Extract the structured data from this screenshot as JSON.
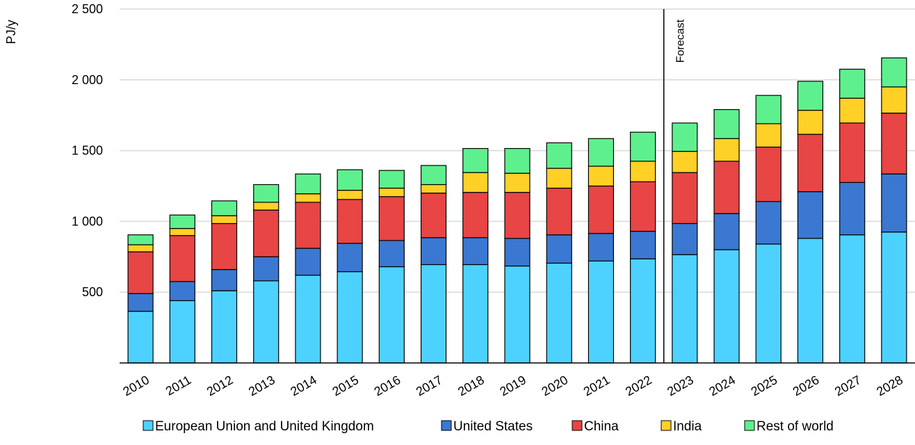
{
  "chart_data": {
    "type": "bar",
    "stacked": true,
    "ylabel": "PJ/y",
    "ylim": [
      0,
      2500
    ],
    "yticks": [
      500,
      1000,
      1500,
      2000,
      2500
    ],
    "ytick_labels": [
      "500",
      "1 000",
      "1 500",
      "2 000",
      "2 500"
    ],
    "grid": true,
    "legend_position": "bottom",
    "categories": [
      "2010",
      "2011",
      "2012",
      "2013",
      "2014",
      "2015",
      "2016",
      "2017",
      "2018",
      "2019",
      "2020",
      "2021",
      "2022",
      "2023",
      "2024",
      "2025",
      "2026",
      "2027",
      "2028"
    ],
    "annotation": {
      "label": "Forecast",
      "between": [
        "2022",
        "2023"
      ]
    },
    "series": [
      {
        "name": "European Union and United Kingdom",
        "color": "#4DD2FF",
        "values": [
          365,
          440,
          510,
          580,
          620,
          645,
          680,
          695,
          695,
          685,
          705,
          720,
          735,
          765,
          800,
          840,
          880,
          905,
          925
        ]
      },
      {
        "name": "United States",
        "color": "#3A78D2",
        "values": [
          125,
          135,
          150,
          170,
          190,
          200,
          185,
          190,
          190,
          195,
          200,
          195,
          195,
          220,
          255,
          300,
          330,
          370,
          410
        ]
      },
      {
        "name": "China",
        "color": "#E84545",
        "values": [
          295,
          325,
          325,
          330,
          325,
          310,
          310,
          315,
          320,
          325,
          330,
          335,
          350,
          360,
          370,
          385,
          405,
          420,
          430
        ]
      },
      {
        "name": "India",
        "color": "#FFD026",
        "values": [
          50,
          50,
          55,
          55,
          60,
          65,
          60,
          60,
          140,
          135,
          140,
          140,
          145,
          150,
          160,
          165,
          170,
          175,
          185
        ]
      },
      {
        "name": "Rest of world",
        "color": "#5EF08E",
        "values": [
          70,
          95,
          105,
          125,
          140,
          145,
          125,
          135,
          170,
          175,
          180,
          195,
          205,
          200,
          205,
          200,
          205,
          205,
          205
        ]
      }
    ]
  }
}
